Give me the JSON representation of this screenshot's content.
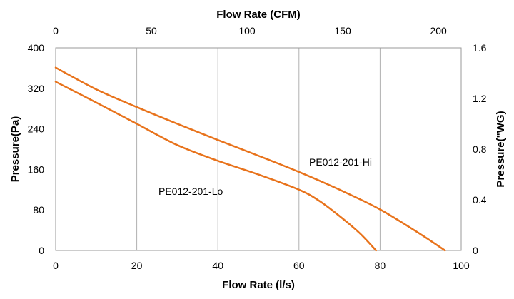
{
  "chart_data": {
    "type": "line",
    "x_label": "Flow Rate (l/s)",
    "x_top_label": "Flow Rate (CFM)",
    "y_label": "Pressure(Pa)",
    "y_right_label": "Pressure(\"WG)",
    "x_range": [
      0,
      100
    ],
    "x_ticks": [
      "0",
      "20",
      "40",
      "60",
      "80",
      "100"
    ],
    "x_top_range": [
      0,
      211.9
    ],
    "x_top_ticks": [
      "0",
      "50",
      "100",
      "150",
      "200"
    ],
    "y_range": [
      0,
      400
    ],
    "y_ticks": [
      "0",
      "80",
      "160",
      "240",
      "320",
      "400"
    ],
    "y_right_range": [
      0,
      1.6
    ],
    "y_right_ticks": [
      "0",
      "0.4",
      "0.8",
      "1.2",
      "1.6"
    ],
    "grid": "vertical",
    "line_color": "#E8731C",
    "series": [
      {
        "name": "PE012-201-Hi",
        "x": [
          0,
          10,
          20,
          30,
          40,
          50,
          60,
          70,
          80,
          90,
          96
        ],
        "y": [
          361,
          318,
          283,
          250,
          218,
          187,
          155,
          120,
          81,
          32,
          0
        ]
      },
      {
        "name": "PE012-201-Lo",
        "x": [
          0,
          10,
          20,
          30,
          40,
          50,
          60,
          65,
          70,
          75,
          79
        ],
        "y": [
          333,
          292,
          250,
          208,
          177,
          150,
          120,
          98,
          68,
          34,
          0
        ]
      }
    ]
  }
}
